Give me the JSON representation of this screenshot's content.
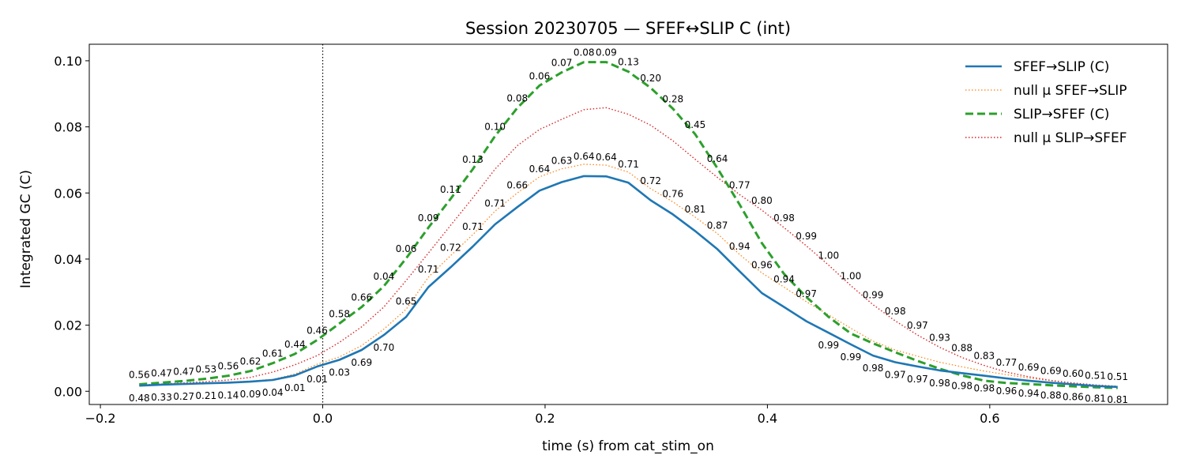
{
  "chart_data": {
    "type": "line",
    "title": "Session 20230705 — SFEF↔SLIP C (int)",
    "xlabel": "time (s) from cat_stim_on",
    "ylabel": "Integrated GC (C)",
    "xlim": [
      -0.21,
      0.76
    ],
    "ylim": [
      -0.004,
      0.105
    ],
    "xticks": [
      -0.2,
      0.0,
      0.2,
      0.4,
      0.6
    ],
    "xtick_labels": [
      "−0.2",
      "0.0",
      "0.2",
      "0.4",
      "0.6"
    ],
    "yticks": [
      0.0,
      0.02,
      0.04,
      0.06,
      0.08,
      0.1
    ],
    "ytick_labels": [
      "0.00",
      "0.02",
      "0.04",
      "0.06",
      "0.08",
      "0.10"
    ],
    "vline_x": 0.0,
    "grid": false,
    "legend_position": "top-right",
    "x": [
      -0.165,
      -0.145,
      -0.125,
      -0.105,
      -0.085,
      -0.065,
      -0.045,
      -0.025,
      -0.005,
      0.015,
      0.035,
      0.055,
      0.075,
      0.095,
      0.115,
      0.135,
      0.155,
      0.175,
      0.195,
      0.215,
      0.235,
      0.255,
      0.275,
      0.295,
      0.315,
      0.335,
      0.355,
      0.375,
      0.395,
      0.415,
      0.435,
      0.455,
      0.475,
      0.495,
      0.515,
      0.535,
      0.555,
      0.575,
      0.595,
      0.615,
      0.635,
      0.655,
      0.675,
      0.695,
      0.715
    ],
    "series": [
      {
        "name": "SFEF→SLIP (C)",
        "color": "#1f77b4",
        "style": "solid",
        "values": [
          0.0017,
          0.002,
          0.0022,
          0.0024,
          0.0026,
          0.0029,
          0.0034,
          0.0048,
          0.0075,
          0.0095,
          0.0125,
          0.017,
          0.0225,
          0.0315,
          0.0375,
          0.0438,
          0.0505,
          0.0557,
          0.0607,
          0.0633,
          0.0651,
          0.065,
          0.0631,
          0.0578,
          0.0535,
          0.0485,
          0.043,
          0.0363,
          0.0297,
          0.0255,
          0.0212,
          0.0177,
          0.0142,
          0.0108,
          0.0088,
          0.0075,
          0.0063,
          0.0055,
          0.0047,
          0.0039,
          0.0032,
          0.0026,
          0.0021,
          0.0016,
          0.0013
        ],
        "labels": [
          "0.48",
          "0.33",
          "0.27",
          "0.21",
          "0.14",
          "0.09",
          "0.04",
          "0.01",
          "0.01",
          "0.03",
          "0.69",
          "0.70",
          "0.65",
          "0.71",
          "0.72",
          "0.71",
          "0.71",
          "0.66",
          "0.64",
          "0.63",
          "0.64",
          "0.64",
          "0.71",
          "0.72",
          "0.76",
          "0.81",
          "0.87",
          "0.94",
          "0.96",
          "0.94",
          "0.97",
          "0.99",
          "0.99",
          "0.98",
          "0.97",
          "0.97",
          "0.98",
          "0.98",
          "0.98",
          "0.96",
          "0.94",
          "0.88",
          "0.86",
          "0.81",
          "0.81"
        ]
      },
      {
        "name": "null μ SFEF→SLIP",
        "color": "#ff7f0e",
        "style": "dotted-thin",
        "values": [
          0.0018,
          0.0021,
          0.0023,
          0.0025,
          0.0028,
          0.0031,
          0.0036,
          0.0052,
          0.0082,
          0.0104,
          0.0138,
          0.0188,
          0.0248,
          0.0345,
          0.041,
          0.0474,
          0.0545,
          0.06,
          0.0649,
          0.0673,
          0.0687,
          0.0684,
          0.0663,
          0.0613,
          0.0573,
          0.0527,
          0.0477,
          0.0414,
          0.0358,
          0.0315,
          0.0271,
          0.0231,
          0.0191,
          0.0152,
          0.0125,
          0.0106,
          0.0088,
          0.0074,
          0.0061,
          0.005,
          0.004,
          0.0032,
          0.0025,
          0.0019,
          0.0015
        ]
      },
      {
        "name": "SLIP→SFEF (C)",
        "color": "#2ca02c",
        "style": "dashed",
        "values": [
          0.0021,
          0.0026,
          0.0031,
          0.0038,
          0.0047,
          0.0061,
          0.0085,
          0.0113,
          0.0155,
          0.0205,
          0.0255,
          0.0318,
          0.0402,
          0.0495,
          0.0582,
          0.0672,
          0.0772,
          0.0857,
          0.0925,
          0.0965,
          0.0996,
          0.0996,
          0.0967,
          0.0918,
          0.0855,
          0.0778,
          0.0675,
          0.0565,
          0.0448,
          0.0355,
          0.0285,
          0.0225,
          0.0175,
          0.0145,
          0.0118,
          0.0092,
          0.0068,
          0.0048,
          0.0032,
          0.0025,
          0.0022,
          0.0018,
          0.0015,
          0.0012,
          0.001
        ],
        "labels": [
          "0.56",
          "0.47",
          "0.47",
          "0.53",
          "0.56",
          "0.62",
          "0.61",
          "0.44",
          "0.46",
          "0.58",
          "0.66",
          "0.04",
          "0.06",
          "0.09",
          "0.11",
          "0.13",
          "0.10",
          "0.08",
          "0.06",
          "0.07",
          "0.08",
          "0.09",
          "0.13",
          "0.20",
          "0.28",
          "0.45",
          "0.64",
          "0.77",
          "0.80",
          "0.98",
          "0.99",
          "1.00",
          "1.00",
          "0.99",
          "0.98",
          "0.97",
          "0.93",
          "0.88",
          "0.83",
          "0.77",
          "0.69",
          "0.69",
          "0.60",
          "0.51",
          "0.51"
        ]
      },
      {
        "name": "null μ SLIP→SFEF",
        "color": "#d62728",
        "style": "dotted",
        "values": [
          0.0019,
          0.0022,
          0.0025,
          0.0029,
          0.0034,
          0.0042,
          0.0058,
          0.008,
          0.0108,
          0.0148,
          0.0195,
          0.0255,
          0.0335,
          0.0418,
          0.0502,
          0.0585,
          0.0672,
          0.0743,
          0.0792,
          0.0823,
          0.0852,
          0.0858,
          0.0838,
          0.0805,
          0.0758,
          0.0702,
          0.0647,
          0.0595,
          0.0548,
          0.0495,
          0.044,
          0.0382,
          0.032,
          0.0262,
          0.0213,
          0.017,
          0.0133,
          0.0102,
          0.0078,
          0.0058,
          0.0044,
          0.0033,
          0.0025,
          0.0019,
          0.0015
        ]
      }
    ]
  }
}
